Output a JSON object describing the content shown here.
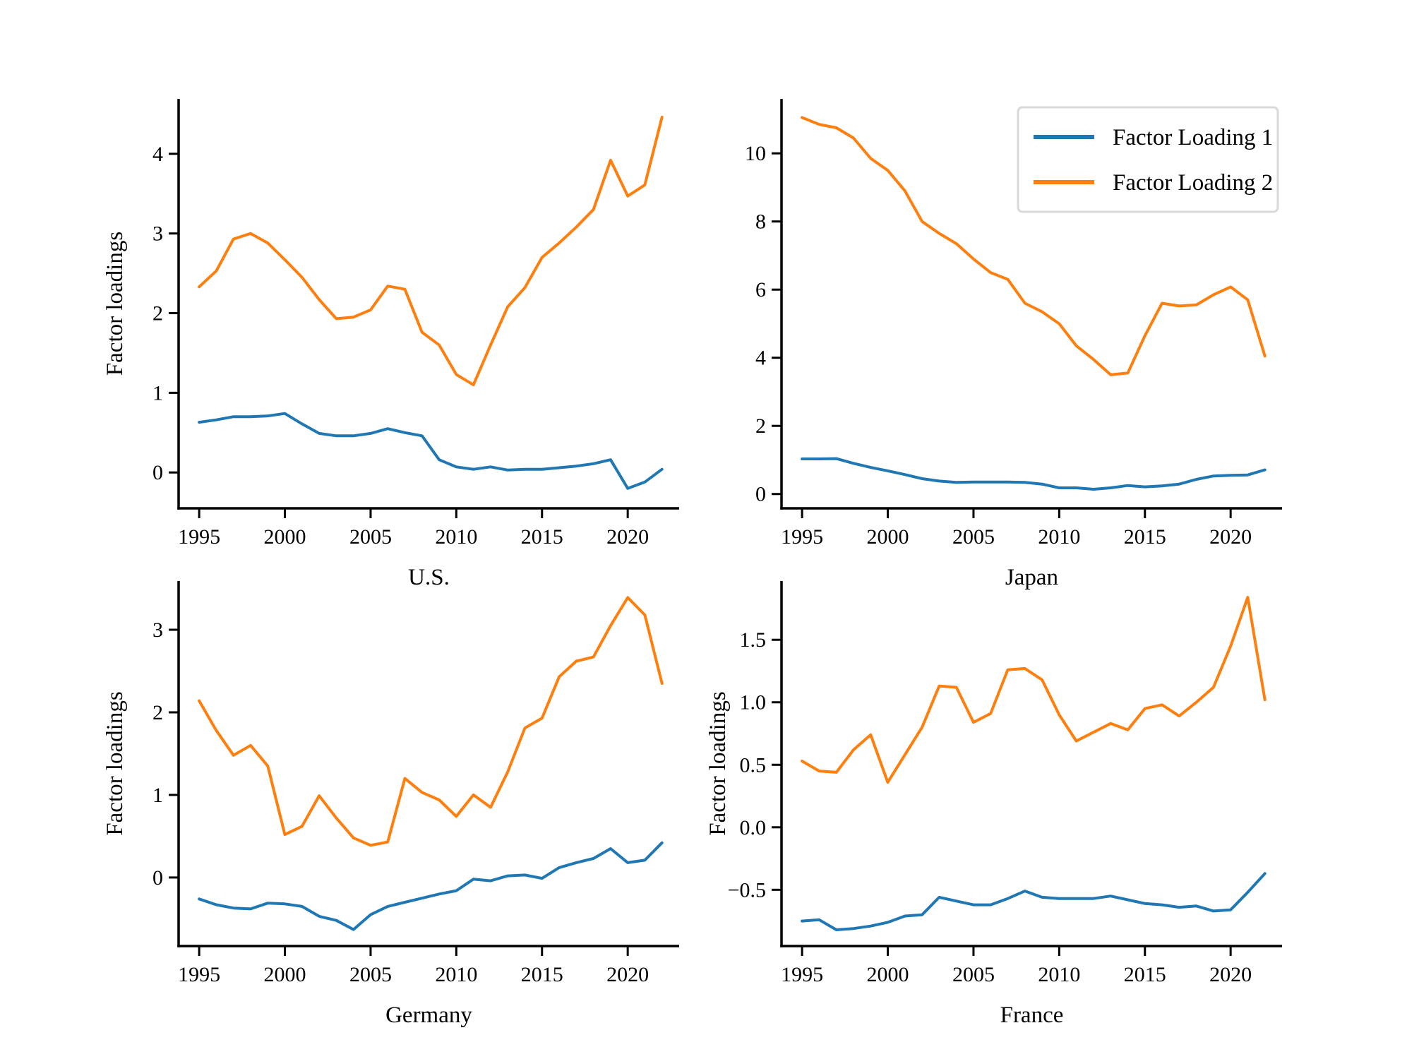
{
  "page": {
    "background": "#ffffff"
  },
  "colors": {
    "series1": "#1f77b4",
    "series2": "#ff7f0e",
    "axis": "#000000",
    "legend_border": "#d9d9d9",
    "legend_fill": "#ffffff"
  },
  "legend": {
    "position": "upper-right-of-japan-panel",
    "items": [
      {
        "label": "Factor Loading 1",
        "color": "#1f77b4"
      },
      {
        "label": "Factor Loading 2",
        "color": "#ff7f0e"
      }
    ]
  },
  "chart_data": [
    {
      "id": "us",
      "type": "line",
      "xlabel": "U.S.",
      "ylabel": "Factor loadings",
      "legend": false,
      "grid": false,
      "x": [
        1995,
        1996,
        1997,
        1998,
        1999,
        2000,
        2001,
        2002,
        2003,
        2004,
        2005,
        2006,
        2007,
        2008,
        2009,
        2010,
        2011,
        2012,
        2013,
        2014,
        2015,
        2016,
        2017,
        2018,
        2019,
        2020,
        2021,
        2022
      ],
      "series": [
        {
          "name": "Factor Loading 1",
          "color": "#1f77b4",
          "values": [
            0.63,
            0.66,
            0.7,
            0.7,
            0.71,
            0.74,
            0.61,
            0.49,
            0.46,
            0.46,
            0.49,
            0.55,
            0.5,
            0.46,
            0.16,
            0.07,
            0.04,
            0.07,
            0.03,
            0.04,
            0.04,
            0.06,
            0.08,
            0.11,
            0.16,
            -0.2,
            -0.12,
            0.04
          ]
        },
        {
          "name": "Factor Loading 2",
          "color": "#ff7f0e",
          "values": [
            2.33,
            2.53,
            2.93,
            3.0,
            2.88,
            2.67,
            2.45,
            2.17,
            1.93,
            1.95,
            2.04,
            2.34,
            2.3,
            1.76,
            1.6,
            1.23,
            1.1,
            1.6,
            2.08,
            2.32,
            2.7,
            2.88,
            3.08,
            3.3,
            3.92,
            3.47,
            3.61,
            4.46
          ]
        }
      ],
      "xlim": [
        1993.8,
        2023.0
      ],
      "ylim": [
        -0.45,
        4.69
      ],
      "xticks": [
        1995,
        2000,
        2005,
        2010,
        2015,
        2020
      ],
      "xtick_labels": [
        "1995",
        "2000",
        "2005",
        "2010",
        "2015",
        "2020"
      ],
      "yticks": [
        0,
        1,
        2,
        3,
        4
      ],
      "ytick_labels": [
        "0",
        "1",
        "2",
        "3",
        "4"
      ]
    },
    {
      "id": "japan",
      "type": "line",
      "xlabel": "Japan",
      "ylabel": null,
      "legend": true,
      "grid": false,
      "x": [
        1995,
        1996,
        1997,
        1998,
        1999,
        2000,
        2001,
        2002,
        2003,
        2004,
        2005,
        2006,
        2007,
        2008,
        2009,
        2010,
        2011,
        2012,
        2013,
        2014,
        2015,
        2016,
        2017,
        2018,
        2019,
        2020,
        2021,
        2022
      ],
      "series": [
        {
          "name": "Factor Loading 1",
          "color": "#1f77b4",
          "values": [
            1.03,
            1.03,
            1.04,
            0.9,
            0.78,
            0.68,
            0.57,
            0.45,
            0.38,
            0.34,
            0.35,
            0.35,
            0.35,
            0.34,
            0.29,
            0.18,
            0.18,
            0.14,
            0.18,
            0.25,
            0.21,
            0.24,
            0.29,
            0.43,
            0.53,
            0.55,
            0.56,
            0.71
          ]
        },
        {
          "name": "Factor Loading 2",
          "color": "#ff7f0e",
          "values": [
            11.05,
            10.85,
            10.75,
            10.45,
            9.85,
            9.5,
            8.9,
            8.0,
            7.65,
            7.35,
            6.9,
            6.5,
            6.3,
            5.6,
            5.35,
            5.0,
            4.35,
            3.95,
            3.5,
            3.55,
            4.65,
            5.6,
            5.52,
            5.55,
            5.85,
            6.08,
            5.7,
            4.05
          ]
        }
      ],
      "xlim": [
        1993.8,
        2023.0
      ],
      "ylim": [
        -0.42,
        11.6
      ],
      "xticks": [
        1995,
        2000,
        2005,
        2010,
        2015,
        2020
      ],
      "xtick_labels": [
        "1995",
        "2000",
        "2005",
        "2010",
        "2015",
        "2020"
      ],
      "yticks": [
        0,
        2,
        4,
        6,
        8,
        10
      ],
      "ytick_labels": [
        "0",
        "2",
        "4",
        "6",
        "8",
        "10"
      ]
    },
    {
      "id": "germany",
      "type": "line",
      "xlabel": "Germany",
      "ylabel": "Factor loadings",
      "legend": false,
      "grid": false,
      "x": [
        1995,
        1996,
        1997,
        1998,
        1999,
        2000,
        2001,
        2002,
        2003,
        2004,
        2005,
        2006,
        2007,
        2008,
        2009,
        2010,
        2011,
        2012,
        2013,
        2014,
        2015,
        2016,
        2017,
        2018,
        2019,
        2020,
        2021,
        2022
      ],
      "series": [
        {
          "name": "Factor Loading 1",
          "color": "#1f77b4",
          "values": [
            -0.26,
            -0.33,
            -0.37,
            -0.38,
            -0.31,
            -0.32,
            -0.35,
            -0.47,
            -0.52,
            -0.63,
            -0.45,
            -0.35,
            -0.3,
            -0.25,
            -0.2,
            -0.16,
            -0.02,
            -0.04,
            0.02,
            0.03,
            -0.01,
            0.12,
            0.18,
            0.23,
            0.35,
            0.18,
            0.21,
            0.42
          ]
        },
        {
          "name": "Factor Loading 2",
          "color": "#ff7f0e",
          "values": [
            2.14,
            1.78,
            1.48,
            1.6,
            1.35,
            0.52,
            0.62,
            0.99,
            0.72,
            0.48,
            0.39,
            0.43,
            1.2,
            1.03,
            0.94,
            0.74,
            1.0,
            0.85,
            1.28,
            1.81,
            1.93,
            2.43,
            2.62,
            2.67,
            3.05,
            3.39,
            3.18,
            2.35
          ]
        }
      ],
      "xlim": [
        1993.8,
        2023.0
      ],
      "ylim": [
        -0.83,
        3.59
      ],
      "xticks": [
        1995,
        2000,
        2005,
        2010,
        2015,
        2020
      ],
      "xtick_labels": [
        "1995",
        "2000",
        "2005",
        "2010",
        "2015",
        "2020"
      ],
      "yticks": [
        0,
        1,
        2,
        3
      ],
      "ytick_labels": [
        "0",
        "1",
        "2",
        "3"
      ]
    },
    {
      "id": "france",
      "type": "line",
      "xlabel": "France",
      "ylabel": "Factor loadings",
      "legend": false,
      "grid": false,
      "x": [
        1995,
        1996,
        1997,
        1998,
        1999,
        2000,
        2001,
        2002,
        2003,
        2004,
        2005,
        2006,
        2007,
        2008,
        2009,
        2010,
        2011,
        2012,
        2013,
        2014,
        2015,
        2016,
        2017,
        2018,
        2019,
        2020,
        2021,
        2022
      ],
      "series": [
        {
          "name": "Factor Loading 1",
          "color": "#1f77b4",
          "values": [
            -0.75,
            -0.74,
            -0.82,
            -0.81,
            -0.79,
            -0.76,
            -0.71,
            -0.7,
            -0.56,
            -0.59,
            -0.62,
            -0.62,
            -0.57,
            -0.51,
            -0.56,
            -0.57,
            -0.57,
            -0.57,
            -0.55,
            -0.58,
            -0.61,
            -0.62,
            -0.64,
            -0.63,
            -0.67,
            -0.66,
            -0.52,
            -0.37
          ]
        },
        {
          "name": "Factor Loading 2",
          "color": "#ff7f0e",
          "values": [
            0.53,
            0.45,
            0.44,
            0.62,
            0.74,
            0.36,
            0.58,
            0.8,
            1.13,
            1.12,
            0.84,
            0.91,
            1.26,
            1.27,
            1.18,
            0.9,
            0.69,
            0.76,
            0.83,
            0.78,
            0.95,
            0.98,
            0.89,
            1.0,
            1.12,
            1.45,
            1.84,
            1.02
          ]
        }
      ],
      "xlim": [
        1993.8,
        2023.0
      ],
      "ylim": [
        -0.95,
        1.97
      ],
      "xticks": [
        1995,
        2000,
        2005,
        2010,
        2015,
        2020
      ],
      "xtick_labels": [
        "1995",
        "2000",
        "2005",
        "2010",
        "2015",
        "2020"
      ],
      "yticks": [
        -0.5,
        0.0,
        0.5,
        1.0,
        1.5
      ],
      "ytick_labels": [
        "−0.5",
        "0.0",
        "0.5",
        "1.0",
        "1.5"
      ]
    }
  ]
}
